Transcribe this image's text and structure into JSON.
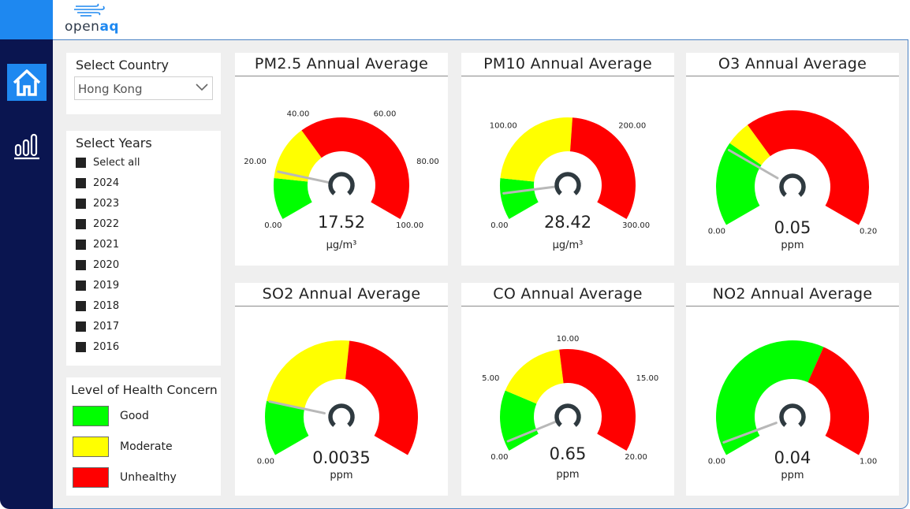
{
  "header": {
    "logo_text_1": "open",
    "logo_text_2": "aq"
  },
  "filters": {
    "country_label": "Select Country",
    "country_value": "Hong Kong",
    "years_label": "Select Years",
    "years": [
      "Select all",
      "2024",
      "2023",
      "2022",
      "2021",
      "2020",
      "2019",
      "2018",
      "2017",
      "2016"
    ]
  },
  "legend": {
    "title": "Level of Health Concern",
    "items": [
      {
        "label": "Good",
        "color": "#00FF00"
      },
      {
        "label": "Moderate",
        "color": "#FFFF00"
      },
      {
        "label": "Unhealthy",
        "color": "#FF0000"
      }
    ]
  },
  "gauges": [
    {
      "title": "PM2.5 Annual Average",
      "value": "17.52",
      "unit": "µg/m³",
      "numeric": 17.52,
      "min": 0,
      "max": 100,
      "ticks": [
        "0.00",
        "20.00",
        "40.00",
        "60.00",
        "80.00",
        "100.00"
      ],
      "bands": [
        [
          0,
          15
        ],
        [
          15,
          35
        ],
        [
          35,
          100
        ]
      ]
    },
    {
      "title": "PM10 Annual Average",
      "value": "28.42",
      "unit": "µg/m³",
      "numeric": 28.42,
      "min": 0,
      "max": 300,
      "ticks": [
        "0.00",
        "100.00",
        "200.00",
        "300.00"
      ],
      "bands": [
        [
          0,
          45
        ],
        [
          45,
          155
        ],
        [
          155,
          300
        ]
      ]
    },
    {
      "title": "O3 Annual Average",
      "value": "0.05",
      "unit": "ppm",
      "numeric": 0.05,
      "min": 0,
      "max": 0.2,
      "ticks": [
        "0.00",
        "0.20"
      ],
      "bands": [
        [
          0,
          0.054
        ],
        [
          0.054,
          0.07
        ],
        [
          0.07,
          0.2
        ]
      ]
    },
    {
      "title": "SO2 Annual Average",
      "value": "0.0035",
      "unit": "ppm",
      "numeric": 0.0035,
      "min": 0,
      "max": 0.02,
      "ticks": [
        "0.00"
      ],
      "bands": [
        [
          0,
          0.0035
        ],
        [
          0.0035,
          0.0105
        ],
        [
          0.0105,
          0.02
        ]
      ]
    },
    {
      "title": "CO Annual Average",
      "value": "0.65",
      "unit": "ppm",
      "numeric": 0.65,
      "min": 0,
      "max": 20,
      "ticks": [
        "0.00",
        "5.00",
        "10.00",
        "15.00",
        "20.00"
      ],
      "bands": [
        [
          0,
          4.4
        ],
        [
          4.4,
          9.4
        ],
        [
          9.4,
          20
        ]
      ]
    },
    {
      "title": "NO2 Annual Average",
      "value": "0.04",
      "unit": "ppm",
      "numeric": 0.04,
      "min": 0,
      "max": 1,
      "ticks": [
        "0.00",
        "1.00"
      ],
      "bands": [
        [
          0,
          0.6
        ],
        [
          0.6,
          0.6
        ],
        [
          0.6,
          1
        ]
      ]
    }
  ],
  "colors": {
    "good": "#00FF00",
    "moderate": "#FFFF00",
    "unhealthy": "#FF0000",
    "nav": "#0A1550",
    "accent": "#1E88F0"
  }
}
